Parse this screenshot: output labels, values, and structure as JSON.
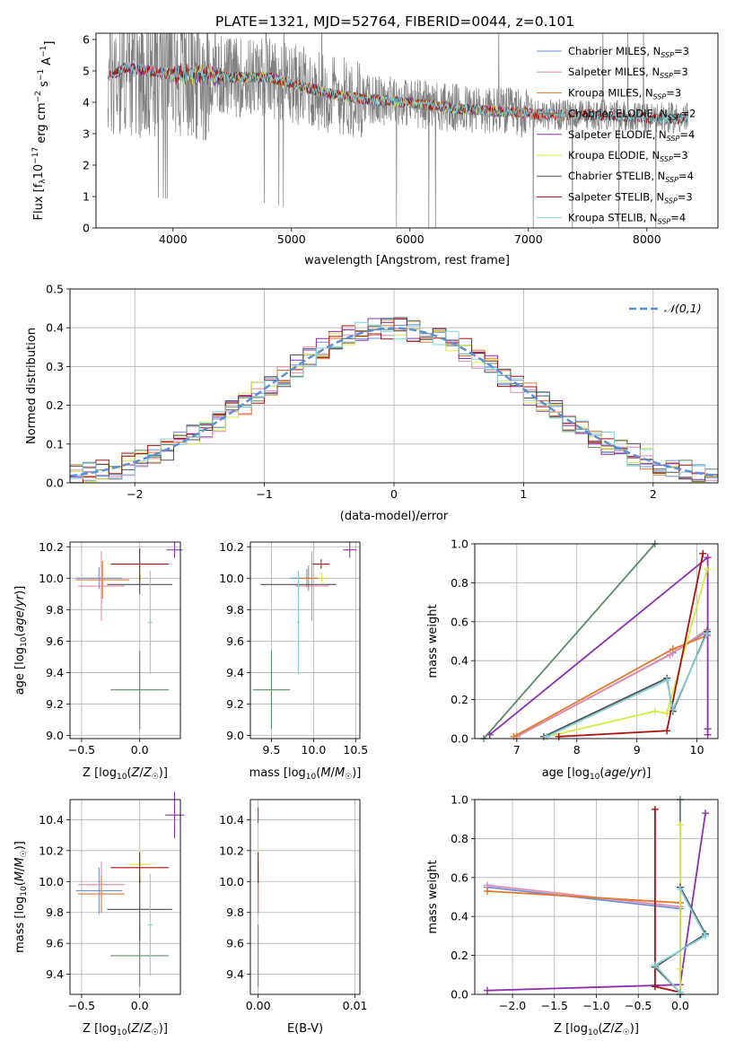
{
  "figure_title": "PLATE=1321, MJD=52764, FIBERID=0044, z=0.101",
  "colors": {
    "Chabrier MILES": "#6f8fd9",
    "Salpeter MILES": "#e48aad",
    "Kroupa MILES": "#e07a2a",
    "Chabrier ELODIE": "#5a8a6a",
    "Salpeter ELODIE": "#8e2fb0",
    "Kroupa ELODIE": "#d6ea45",
    "Chabrier STELIB": "#505050",
    "Salpeter STELIB": "#aa1111",
    "Kroupa STELIB": "#84d0d8",
    "data": "#808080",
    "normal": "#5b8fd6"
  },
  "chart_data": [
    {
      "id": "spectrum",
      "type": "line",
      "xlabel": "wavelength [Angstrom, rest frame]",
      "ylabel": "Flux [f_λ10^-17 erg cm^-2 s^-1 A^-1]",
      "xlim": [
        3350,
        8600
      ],
      "ylim": [
        0,
        6.2
      ],
      "xticks": [
        4000,
        5000,
        6000,
        7000,
        8000
      ],
      "yticks": [
        0,
        1,
        2,
        3,
        4,
        5,
        6
      ],
      "data_range": [
        3450,
        8350
      ],
      "approx_model_continuum": {
        "x": [
          3450,
          3600,
          3800,
          4000,
          4200,
          4500,
          4800,
          5000,
          5300,
          5600,
          6000,
          6400,
          6800,
          7200,
          7600,
          8000,
          8350
        ],
        "y": [
          4.8,
          5.1,
          5.0,
          4.9,
          4.9,
          4.8,
          4.8,
          4.6,
          4.3,
          4.1,
          4.0,
          3.8,
          3.7,
          3.6,
          3.6,
          3.5,
          3.5
        ]
      },
      "legend_placement": "top-right",
      "legend": [
        {
          "name": "Chabrier MILES",
          "nssp": "3"
        },
        {
          "name": "Salpeter MILES",
          "nssp": "3"
        },
        {
          "name": "Kroupa MILES",
          "nssp": "3"
        },
        {
          "name": "Chabrier ELODIE",
          "nssp": "2"
        },
        {
          "name": "Salpeter ELODIE",
          "nssp": "4"
        },
        {
          "name": "Kroupa ELODIE",
          "nssp": "3"
        },
        {
          "name": "Chabrier STELIB",
          "nssp": "4"
        },
        {
          "name": "Salpeter STELIB",
          "nssp": "3"
        },
        {
          "name": "Kroupa STELIB",
          "nssp": "4"
        }
      ],
      "grid": false
    },
    {
      "id": "residuals",
      "type": "line",
      "xlabel": "(data-model)/error",
      "ylabel": "Normed distribution",
      "xlim": [
        -2.5,
        2.5
      ],
      "ylim": [
        0,
        0.5
      ],
      "xticks": [
        -2,
        -1,
        0,
        1,
        2
      ],
      "yticks": [
        0.0,
        0.1,
        0.2,
        0.3,
        0.4,
        0.5
      ],
      "legend": "𝒩(0,1)",
      "legend_placement": "top-right",
      "bin_width": 0.1,
      "grid": true
    },
    {
      "id": "age_vs_Z",
      "type": "scatter",
      "xlabel": "Z [log10(Z/Z☉)]",
      "ylabel": "age  [log10(age/yr)]",
      "xlim": [
        -0.6,
        0.35
      ],
      "ylim": [
        8.98,
        10.23
      ],
      "xticks": [
        -0.5,
        0.0
      ],
      "yticks": [
        9.0,
        9.2,
        9.4,
        9.6,
        9.8,
        10.0,
        10.2
      ],
      "grid": true,
      "points": [
        {
          "model": "Chabrier MILES",
          "x": -0.35,
          "y": 10.0,
          "xerr": 0.2,
          "yerr": 0.07
        },
        {
          "model": "Salpeter MILES",
          "x": -0.33,
          "y": 9.95,
          "xerr": 0.2,
          "yerr": 0.22
        },
        {
          "model": "Kroupa MILES",
          "x": -0.32,
          "y": 9.99,
          "xerr": 0.23,
          "yerr": 0.12
        },
        {
          "model": "Chabrier ELODIE",
          "x": 0.0,
          "y": 9.29,
          "xerr": 0.25,
          "yerr": 0.25
        },
        {
          "model": "Salpeter ELODIE",
          "x": 0.3,
          "y": 10.18,
          "xerr": 0.07,
          "yerr": 0.05
        },
        {
          "model": "Kroupa ELODIE",
          "x": 0.0,
          "y": 10.0,
          "xerr": 0.02,
          "yerr": 0.05
        },
        {
          "model": "Chabrier STELIB",
          "x": 0.0,
          "y": 9.96,
          "xerr": 0.28,
          "yerr": 0.06
        },
        {
          "model": "Salpeter STELIB",
          "x": 0.0,
          "y": 10.09,
          "xerr": 0.25,
          "yerr": 0.1
        },
        {
          "model": "Kroupa STELIB",
          "x": 0.09,
          "y": 9.72,
          "xerr": 0.02,
          "yerr": 0.33
        }
      ]
    },
    {
      "id": "age_vs_mass",
      "type": "scatter",
      "xlabel": "mass [log10(M/M☉)]",
      "ylabel": "",
      "xlim": [
        9.25,
        10.55
      ],
      "ylim": [
        8.98,
        10.23
      ],
      "xticks": [
        9.5,
        10.0,
        10.5
      ],
      "yticks": [
        9.0,
        9.2,
        9.4,
        9.6,
        9.8,
        10.0,
        10.2
      ],
      "grid": true,
      "points": [
        {
          "model": "Chabrier MILES",
          "x": 9.92,
          "y": 10.0,
          "xerr": 0.2,
          "yerr": 0.06
        },
        {
          "model": "Salpeter MILES",
          "x": 9.98,
          "y": 9.95,
          "xerr": 0.2,
          "yerr": 0.22
        },
        {
          "model": "Kroupa MILES",
          "x": 9.94,
          "y": 10.0,
          "xerr": 0.12,
          "yerr": 0.08
        },
        {
          "model": "Chabrier ELODIE",
          "x": 9.5,
          "y": 9.29,
          "xerr": 0.22,
          "yerr": 0.25
        },
        {
          "model": "Salpeter ELODIE",
          "x": 10.43,
          "y": 10.18,
          "xerr": 0.08,
          "yerr": 0.05
        },
        {
          "model": "Kroupa ELODIE",
          "x": 10.1,
          "y": 10.0,
          "xerr": 0.05,
          "yerr": 0.03
        },
        {
          "model": "Chabrier STELIB",
          "x": 9.82,
          "y": 9.96,
          "xerr": 0.45,
          "yerr": 0.06
        },
        {
          "model": "Salpeter STELIB",
          "x": 10.09,
          "y": 10.09,
          "xerr": 0.1,
          "yerr": 0.03
        },
        {
          "model": "Kroupa STELIB",
          "x": 9.82,
          "y": 9.72,
          "xerr": 0.02,
          "yerr": 0.33
        }
      ]
    },
    {
      "id": "weight_vs_age",
      "type": "line",
      "xlabel": "age  [log10(age/yr)]",
      "ylabel": "mass weight",
      "xlim": [
        6.3,
        10.35
      ],
      "ylim": [
        0,
        1.0
      ],
      "xticks": [
        7,
        8,
        9,
        10
      ],
      "yticks": [
        0.0,
        0.2,
        0.4,
        0.6,
        0.8,
        1.0
      ],
      "grid": true,
      "series": [
        {
          "model": "Chabrier MILES",
          "x": [
            10.17,
            9.6,
            7.0
          ],
          "y": [
            0.55,
            0.44,
            0.01
          ]
        },
        {
          "model": "Salpeter MILES",
          "x": [
            10.17,
            9.55,
            7.0
          ],
          "y": [
            0.56,
            0.43,
            0.01
          ]
        },
        {
          "model": "Kroupa MILES",
          "x": [
            10.17,
            9.6,
            6.95
          ],
          "y": [
            0.53,
            0.46,
            0.01
          ]
        },
        {
          "model": "Chabrier ELODIE",
          "x": [
            9.3,
            6.45
          ],
          "y": [
            1.0,
            0.0
          ]
        },
        {
          "model": "Salpeter ELODIE",
          "x": [
            10.18,
            10.18,
            10.18,
            6.55
          ],
          "y": [
            0.02,
            0.05,
            0.93,
            0.02
          ]
        },
        {
          "model": "Kroupa ELODIE",
          "x": [
            10.17,
            9.5,
            9.3,
            7.5
          ],
          "y": [
            0.87,
            0.13,
            0.14,
            0.01
          ]
        },
        {
          "model": "Chabrier STELIB",
          "x": [
            10.17,
            9.6,
            9.5,
            7.45
          ],
          "y": [
            0.55,
            0.14,
            0.31,
            0.01
          ]
        },
        {
          "model": "Salpeter STELIB",
          "x": [
            10.1,
            9.5,
            7.7
          ],
          "y": [
            0.95,
            0.04,
            0.01
          ]
        },
        {
          "model": "Kroupa STELIB",
          "x": [
            10.17,
            9.6,
            9.5,
            7.5
          ],
          "y": [
            0.54,
            0.15,
            0.3,
            0.01
          ]
        }
      ]
    },
    {
      "id": "mass_vs_Z",
      "type": "scatter",
      "xlabel": "Z [log10(Z/Z☉)]",
      "ylabel": "mass [log10(M/M☉)]",
      "xlim": [
        -0.6,
        0.35
      ],
      "ylim": [
        9.27,
        10.53
      ],
      "xticks": [
        -0.5,
        0.0
      ],
      "yticks": [
        9.4,
        9.6,
        9.8,
        10.0,
        10.2,
        10.4
      ],
      "grid": true,
      "points": [
        {
          "model": "Chabrier MILES",
          "x": -0.35,
          "y": 9.94,
          "xerr": 0.2,
          "yerr": 0.15
        },
        {
          "model": "Salpeter MILES",
          "x": -0.33,
          "y": 9.98,
          "xerr": 0.2,
          "yerr": 0.15
        },
        {
          "model": "Kroupa MILES",
          "x": -0.33,
          "y": 9.92,
          "xerr": 0.2,
          "yerr": 0.12
        },
        {
          "model": "Chabrier ELODIE",
          "x": 0.0,
          "y": 9.52,
          "xerr": 0.25,
          "yerr": 0.2
        },
        {
          "model": "Salpeter ELODIE",
          "x": 0.3,
          "y": 10.43,
          "xerr": 0.08,
          "yerr": 0.15
        },
        {
          "model": "Kroupa ELODIE",
          "x": 0.0,
          "y": 10.11,
          "xerr": 0.1,
          "yerr": 0.1
        },
        {
          "model": "Chabrier STELIB",
          "x": 0.0,
          "y": 9.82,
          "xerr": 0.28,
          "yerr": 0.2
        },
        {
          "model": "Salpeter STELIB",
          "x": 0.0,
          "y": 10.09,
          "xerr": 0.25,
          "yerr": 0.1
        },
        {
          "model": "Kroupa STELIB",
          "x": 0.09,
          "y": 9.72,
          "xerr": 0.02,
          "yerr": 0.33
        }
      ]
    },
    {
      "id": "mass_vs_ebv",
      "type": "scatter",
      "xlabel": "E(B-V)",
      "ylabel": "",
      "xlim": [
        -0.0008,
        0.0105
      ],
      "ylim": [
        9.27,
        10.53
      ],
      "xticks": [
        0.0,
        0.01
      ],
      "xticklabels": [
        "0.00",
        "0.01"
      ],
      "yticks": [
        9.4,
        9.6,
        9.8,
        10.0,
        10.2,
        10.4
      ],
      "grid": true,
      "points": [
        {
          "model": "Chabrier MILES",
          "x": 0.0,
          "y": 9.94,
          "xerr": 0,
          "yerr": 0.15
        },
        {
          "model": "Salpeter MILES",
          "x": 0.0,
          "y": 9.98,
          "xerr": 0,
          "yerr": 0.15
        },
        {
          "model": "Kroupa MILES",
          "x": 0.0,
          "y": 9.92,
          "xerr": 0,
          "yerr": 0.12
        },
        {
          "model": "Chabrier ELODIE",
          "x": 0.0,
          "y": 9.52,
          "xerr": 0,
          "yerr": 0.2
        },
        {
          "model": "Salpeter ELODIE",
          "x": 0.0,
          "y": 10.43,
          "xerr": 0,
          "yerr": 0.05
        },
        {
          "model": "Kroupa ELODIE",
          "x": 0.0,
          "y": 10.11,
          "xerr": 0,
          "yerr": 0.1
        },
        {
          "model": "Chabrier STELIB",
          "x": 0.01,
          "y": 9.82,
          "xerr": 0,
          "yerr": 0.2
        },
        {
          "model": "Salpeter STELIB",
          "x": 0.0,
          "y": 10.09,
          "xerr": 0,
          "yerr": 0.1
        },
        {
          "model": "Kroupa STELIB",
          "x": 0.01,
          "y": 9.72,
          "xerr": 0,
          "yerr": 0.33
        }
      ]
    },
    {
      "id": "weight_vs_Z",
      "type": "line",
      "xlabel": "Z [log10(Z/Z☉)]",
      "ylabel": "mass weight",
      "xlim": [
        -2.45,
        0.45
      ],
      "ylim": [
        0,
        1.0
      ],
      "xticks": [
        -2.0,
        -1.5,
        -1.0,
        -0.5,
        0.0
      ],
      "yticks": [
        0.0,
        0.2,
        0.4,
        0.6,
        0.8,
        1.0
      ],
      "grid": true,
      "series": [
        {
          "model": "Chabrier MILES",
          "x": [
            -2.3,
            0.0,
            0.0
          ],
          "y": [
            0.55,
            0.44,
            0.01
          ]
        },
        {
          "model": "Salpeter MILES",
          "x": [
            -2.3,
            0.0,
            0.0
          ],
          "y": [
            0.56,
            0.45,
            0.01
          ]
        },
        {
          "model": "Kroupa MILES",
          "x": [
            -2.3,
            0.0,
            0.0
          ],
          "y": [
            0.53,
            0.47,
            0.01
          ]
        },
        {
          "model": "Chabrier ELODIE",
          "x": [
            0.0,
            0.0
          ],
          "y": [
            1.0,
            0.0
          ]
        },
        {
          "model": "Salpeter ELODIE",
          "x": [
            -2.3,
            0.0,
            0.3
          ],
          "y": [
            0.02,
            0.05,
            0.93
          ]
        },
        {
          "model": "Kroupa ELODIE",
          "x": [
            0.0,
            0.0,
            0.0
          ],
          "y": [
            0.87,
            0.13,
            0.01
          ]
        },
        {
          "model": "Chabrier STELIB",
          "x": [
            0.0,
            0.3,
            -0.3,
            0.0
          ],
          "y": [
            0.55,
            0.31,
            0.14,
            0.01
          ]
        },
        {
          "model": "Salpeter STELIB",
          "x": [
            -0.3,
            -0.3,
            0.0
          ],
          "y": [
            0.95,
            0.04,
            0.01
          ]
        },
        {
          "model": "Kroupa STELIB",
          "x": [
            0.0,
            0.3,
            -0.3,
            0.0
          ],
          "y": [
            0.54,
            0.3,
            0.15,
            0.01
          ]
        }
      ]
    }
  ]
}
